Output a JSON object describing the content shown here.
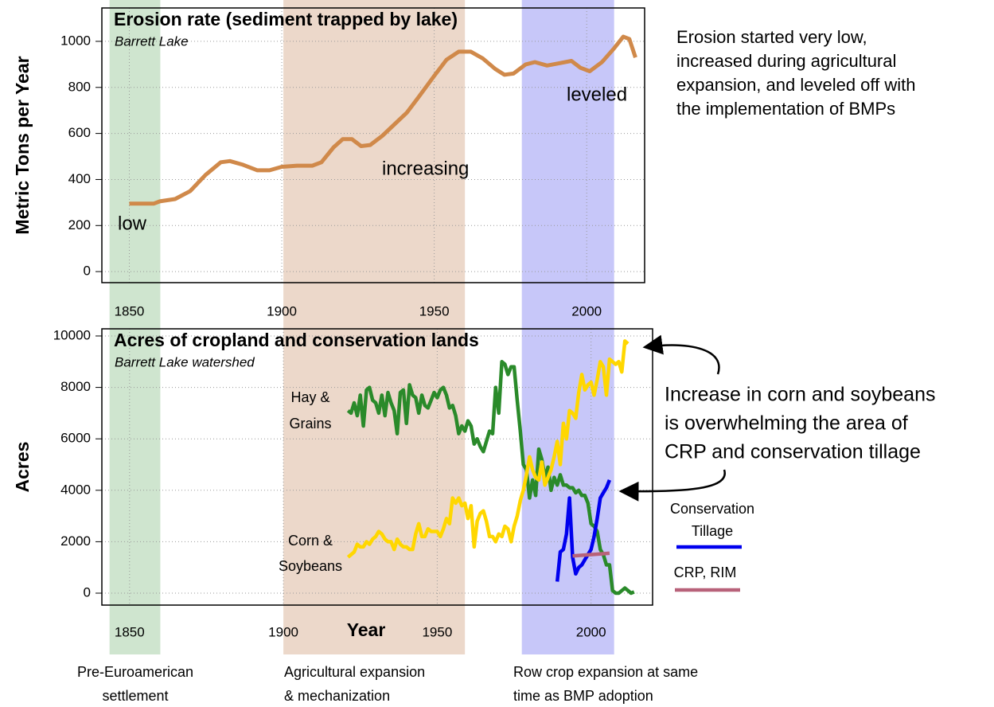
{
  "chart_data": [
    {
      "type": "line",
      "title": "Erosion rate (sediment trapped by lake)",
      "subtitle": "Barrett Lake",
      "y_label": "Metric Tons per Year",
      "xlim": [
        1841,
        2019
      ],
      "ylim": [
        -48,
        1145
      ],
      "xticks": [
        1850,
        1900,
        1950,
        2000
      ],
      "yticks": [
        0,
        200,
        400,
        600,
        800,
        1000
      ],
      "grid": true,
      "annotations": [
        "low",
        "increasing",
        "leveled"
      ],
      "series": [
        {
          "color": "#d0894a",
          "x": [
            1850,
            1855,
            1858,
            1860,
            1865,
            1870,
            1875,
            1880,
            1883,
            1887,
            1892,
            1896,
            1900,
            1905,
            1910,
            1913,
            1917,
            1920,
            1923,
            1926,
            1929,
            1933,
            1937,
            1941,
            1945,
            1950,
            1954,
            1958,
            1962,
            1966,
            1970,
            1973,
            1976,
            1980,
            1983,
            1987,
            1991,
            1995,
            1998,
            2001,
            2005,
            2009,
            2012,
            2014,
            2016
          ],
          "values": [
            295,
            295,
            295,
            305,
            315,
            350,
            420,
            475,
            480,
            465,
            440,
            440,
            455,
            460,
            460,
            475,
            540,
            575,
            575,
            545,
            550,
            590,
            640,
            690,
            760,
            850,
            920,
            955,
            955,
            925,
            880,
            855,
            860,
            900,
            910,
            895,
            905,
            915,
            885,
            870,
            910,
            970,
            1020,
            1010,
            930
          ]
        }
      ]
    },
    {
      "type": "line",
      "title": "Acres of cropland and conservation lands",
      "subtitle": "Barrett Lake watershed",
      "y_label": "Acres",
      "x_label": "Year",
      "xlim": [
        1841,
        2020
      ],
      "ylim": [
        -464,
        10278
      ],
      "xticks": [
        1850,
        1900,
        1950,
        2000
      ],
      "yticks": [
        0,
        2000,
        4000,
        6000,
        8000,
        10000
      ],
      "grid": true,
      "series": [
        {
          "name": [
            "Hay &",
            "Grains"
          ],
          "color": "#2a8a2a",
          "x": [
            1921,
            1922,
            1923,
            1924,
            1925,
            1926,
            1927,
            1928,
            1929,
            1930,
            1931,
            1932,
            1933,
            1934,
            1935,
            1936,
            1937,
            1938,
            1939,
            1940,
            1941,
            1942,
            1943,
            1944,
            1945,
            1946,
            1947,
            1948,
            1949,
            1950,
            1951,
            1952,
            1953,
            1954,
            1955,
            1956,
            1957,
            1958,
            1959,
            1960,
            1961,
            1962,
            1963,
            1964,
            1965,
            1966,
            1967,
            1968,
            1969,
            1970,
            1971,
            1972,
            1973,
            1974,
            1975,
            1976,
            1977,
            1978,
            1979,
            1980,
            1981,
            1982,
            1983,
            1984,
            1985,
            1986,
            1987,
            1988,
            1989,
            1990,
            1991,
            1992,
            1993,
            1994,
            1995,
            1996,
            1997,
            1998,
            1999,
            2000,
            2001,
            2002,
            2003,
            2004,
            2005,
            2006,
            2007,
            2008,
            2009,
            2010,
            2011,
            2012,
            2013,
            2014
          ],
          "values": [
            7100,
            7000,
            7400,
            6900,
            7700,
            6500,
            7900,
            8000,
            7500,
            7400,
            7000,
            7700,
            6900,
            7800,
            7400,
            7100,
            6200,
            7800,
            7900,
            6600,
            8100,
            7700,
            7600,
            7000,
            7700,
            7300,
            7200,
            7500,
            7800,
            7600,
            7900,
            8000,
            7700,
            7200,
            7300,
            6900,
            6200,
            6500,
            6300,
            6700,
            6500,
            5800,
            6000,
            5700,
            5500,
            5900,
            6300,
            6200,
            8000,
            7000,
            9000,
            8900,
            8500,
            8800,
            8800,
            7500,
            6300,
            5000,
            4800,
            3700,
            4400,
            3800,
            5600,
            5200,
            4500,
            4900,
            4000,
            4500,
            4200,
            4600,
            4200,
            4200,
            4100,
            4100,
            3900,
            4000,
            3800,
            3800,
            3500,
            2700,
            2600,
            2400,
            1700,
            1500,
            1100,
            1100,
            100,
            0,
            0,
            100,
            200,
            100,
            0,
            50
          ]
        },
        {
          "name": [
            "Corn &",
            "Soybeans"
          ],
          "color": "#ffd700",
          "x": [
            1921,
            1922,
            1923,
            1924,
            1925,
            1926,
            1927,
            1928,
            1929,
            1930,
            1931,
            1932,
            1933,
            1934,
            1935,
            1936,
            1937,
            1938,
            1939,
            1940,
            1941,
            1942,
            1943,
            1944,
            1945,
            1946,
            1947,
            1948,
            1949,
            1950,
            1951,
            1952,
            1953,
            1954,
            1955,
            1956,
            1957,
            1958,
            1959,
            1960,
            1961,
            1962,
            1963,
            1964,
            1965,
            1966,
            1967,
            1968,
            1969,
            1970,
            1971,
            1972,
            1973,
            1974,
            1975,
            1976,
            1977,
            1978,
            1979,
            1980,
            1981,
            1982,
            1983,
            1984,
            1985,
            1986,
            1987,
            1988,
            1989,
            1990,
            1991,
            1992,
            1993,
            1994,
            1995,
            1996,
            1997,
            1998,
            1999,
            2000,
            2001,
            2002,
            2003,
            2004,
            2005,
            2006,
            2007,
            2008,
            2009,
            2010,
            2011,
            2012
          ],
          "values": [
            1400,
            1500,
            1600,
            1900,
            1800,
            1800,
            2000,
            1900,
            2100,
            2200,
            2400,
            2300,
            2100,
            2000,
            2000,
            1700,
            2100,
            1900,
            1800,
            1800,
            1700,
            1700,
            2300,
            2700,
            2200,
            2200,
            2500,
            2400,
            2400,
            2400,
            2200,
            2500,
            2900,
            2700,
            3700,
            3500,
            3700,
            3400,
            3500,
            2900,
            3400,
            1800,
            2800,
            3100,
            3200,
            2800,
            2200,
            2200,
            2000,
            2300,
            2200,
            2600,
            2500,
            2000,
            2600,
            3000,
            3600,
            4000,
            4600,
            5300,
            4800,
            4500,
            4400,
            5100,
            4200,
            4500,
            4800,
            5300,
            5900,
            5000,
            6600,
            6000,
            7100,
            7000,
            6800,
            7800,
            8500,
            7900,
            8100,
            8200,
            7700,
            8300,
            9000,
            8800,
            7700,
            9100,
            9000,
            8900,
            9000,
            8600,
            9800,
            9700
          ]
        },
        {
          "name": [
            "Conservation",
            "Tillage"
          ],
          "color": "#0000ee",
          "x": [
            1989,
            1990,
            1991,
            1992,
            1993,
            1994,
            1995,
            1996,
            1997,
            1998,
            1999,
            2000,
            2001,
            2002,
            2003,
            2004,
            2005,
            2006
          ],
          "values": [
            450,
            1600,
            1700,
            2300,
            3700,
            1400,
            750,
            1000,
            1100,
            1300,
            1500,
            1700,
            2200,
            2900,
            3700,
            3900,
            4100,
            4400
          ]
        },
        {
          "name": [
            "CRP, RIM"
          ],
          "color": "#b8627a",
          "x": [
            1994,
            2006
          ],
          "values": [
            1450,
            1550
          ]
        }
      ]
    }
  ],
  "periods": [
    {
      "label": [
        "Pre-Euroamerican",
        "settlement"
      ],
      "start": 1843.5,
      "end": 1860,
      "color": "#cfe5cf"
    },
    {
      "label": [
        "Agricultural expansion",
        "& mechanization"
      ],
      "start": 1900,
      "end": 1959,
      "color": "#ecd8ca"
    },
    {
      "label": [
        "Row crop expansion at same",
        "time as  BMP adoption"
      ],
      "start": 1977.5,
      "end": 2007.5,
      "color": "#c7c7f9"
    }
  ],
  "notes": [
    [
      "Erosion started very low,",
      "increased during agricultural",
      "expansion, and leveled off with",
      "the implementation of BMPs"
    ],
    [
      "Increase in corn and soybeans",
      "is overwhelming the area of",
      "CRP and conservation tillage"
    ]
  ]
}
